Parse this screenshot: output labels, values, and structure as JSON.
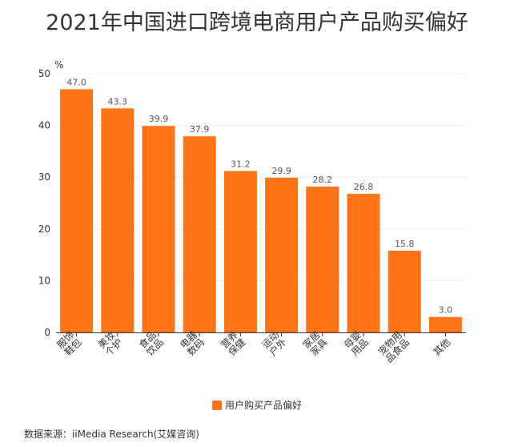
{
  "title": "2021年中国进口跨境电商用户产品购买偏好",
  "source": "数据来源：iiMedia Research(艾媒咨询)",
  "colors": {
    "bar": "#ff7417",
    "grid": "#eeeeee",
    "axis": "#333333"
  },
  "chart_data": {
    "type": "bar",
    "title": "2021年中国进口跨境电商用户产品购买偏好",
    "ylabel": "%",
    "ylim": [
      0,
      50
    ],
    "yticks": [
      0,
      10,
      20,
      30,
      40,
      50
    ],
    "grid": true,
    "legend_position": "bottom",
    "categories": [
      [
        "服饰",
        "鞋包"
      ],
      [
        "美妆",
        "个护"
      ],
      [
        "食品",
        "饮品"
      ],
      [
        "电器",
        "数码"
      ],
      [
        "营养",
        "保健"
      ],
      [
        "运动",
        "户外"
      ],
      [
        "家居",
        "家具"
      ],
      [
        "母婴",
        "用品"
      ],
      [
        "宠物用",
        "品食品"
      ],
      [
        "其他"
      ]
    ],
    "series": [
      {
        "name": "用户购买产品偏好",
        "values": [
          47.0,
          43.3,
          39.9,
          37.9,
          31.2,
          29.9,
          28.2,
          26.8,
          15.8,
          3.0
        ],
        "labels": [
          "47.0",
          "43.3",
          "39.9",
          "37.9",
          "31.2",
          "29.9",
          "28.2",
          "26.8",
          "15.8",
          "3.0"
        ]
      }
    ]
  }
}
